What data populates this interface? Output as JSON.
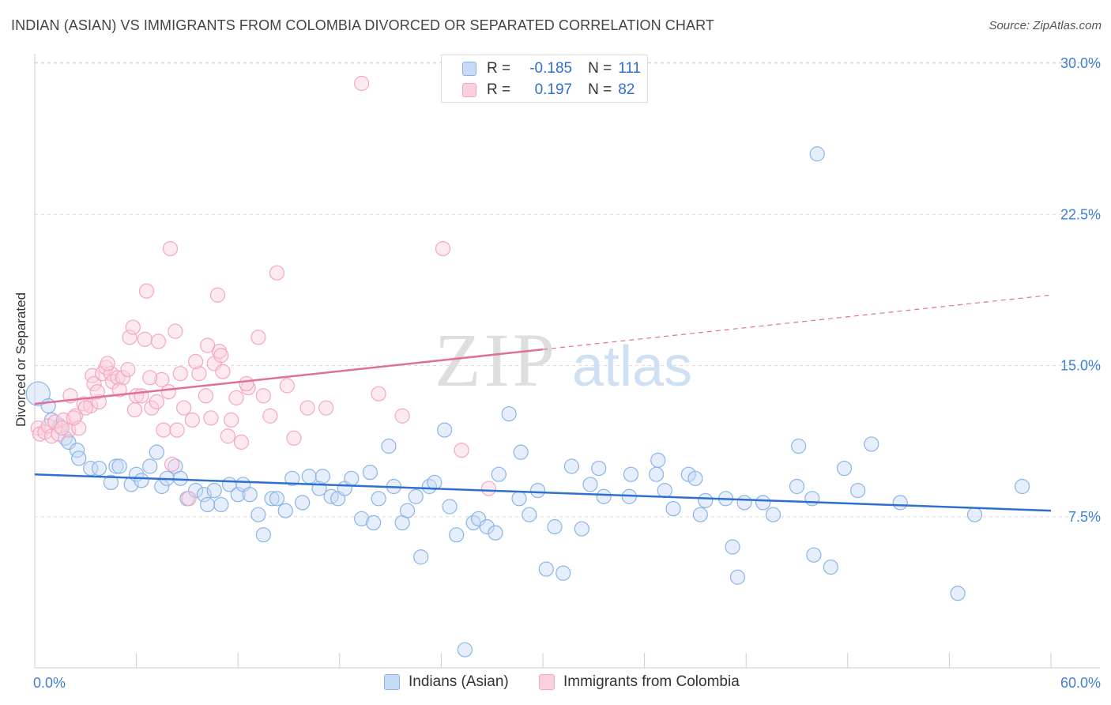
{
  "title": "INDIAN (ASIAN) VS IMMIGRANTS FROM COLOMBIA DIVORCED OR SEPARATED CORRELATION CHART",
  "source": "Source: ZipAtlas.com",
  "watermark": {
    "zip": "ZIP",
    "atlas": "atlas"
  },
  "legend_stats": [
    {
      "r_label": "R =",
      "r_value": "-0.185",
      "n_label": "N =",
      "n_value": "111",
      "color": "#8ab4e8"
    },
    {
      "r_label": "R =",
      "r_value": "0.197",
      "n_label": "N =",
      "n_value": "82",
      "color": "#f4a6c0"
    }
  ],
  "chart_data": {
    "type": "scatter",
    "title": "INDIAN (ASIAN) VS IMMIGRANTS FROM COLOMBIA DIVORCED OR SEPARATED CORRELATION CHART",
    "xlabel": "",
    "ylabel": "Divorced or Separated",
    "xlim": [
      0,
      60
    ],
    "ylim": [
      0,
      32
    ],
    "x_tick_labels": [
      "0.0%",
      "60.0%"
    ],
    "y_ticks": [
      7.5,
      15.0,
      22.5,
      30.0
    ],
    "y_tick_labels": [
      "7.5%",
      "15.0%",
      "22.5%",
      "30.0%"
    ],
    "grid": true,
    "legend_position": "bottom",
    "series": [
      {
        "name": "Indians (Asian)",
        "color": "#8ab4e8",
        "line_color": "#2e6fd0",
        "trend": {
          "x0": 0,
          "y0": 9.6,
          "x1": 60,
          "y1": 7.8
        },
        "points": [
          [
            0.2,
            13.6
          ],
          [
            0.8,
            13.0
          ],
          [
            1.0,
            12.3
          ],
          [
            1.5,
            12.0
          ],
          [
            1.8,
            11.4
          ],
          [
            2.0,
            11.2
          ],
          [
            2.5,
            10.8
          ],
          [
            2.6,
            10.4
          ],
          [
            3.3,
            9.9
          ],
          [
            3.8,
            9.9
          ],
          [
            4.5,
            9.2
          ],
          [
            4.8,
            10.0
          ],
          [
            5.0,
            10.0
          ],
          [
            5.7,
            9.1
          ],
          [
            6.0,
            9.6
          ],
          [
            6.3,
            9.3
          ],
          [
            6.8,
            10.0
          ],
          [
            7.2,
            10.7
          ],
          [
            7.5,
            9.0
          ],
          [
            7.8,
            9.4
          ],
          [
            8.3,
            10.0
          ],
          [
            8.6,
            9.4
          ],
          [
            9.0,
            8.4
          ],
          [
            9.5,
            8.8
          ],
          [
            10.0,
            8.6
          ],
          [
            10.2,
            8.1
          ],
          [
            10.6,
            8.8
          ],
          [
            11.0,
            8.1
          ],
          [
            11.5,
            9.1
          ],
          [
            12.0,
            8.6
          ],
          [
            12.3,
            9.1
          ],
          [
            12.7,
            8.6
          ],
          [
            13.2,
            7.6
          ],
          [
            13.5,
            6.6
          ],
          [
            14.0,
            8.4
          ],
          [
            14.3,
            8.4
          ],
          [
            14.8,
            7.8
          ],
          [
            15.2,
            9.4
          ],
          [
            15.8,
            8.2
          ],
          [
            16.2,
            9.5
          ],
          [
            16.8,
            8.9
          ],
          [
            17.0,
            9.5
          ],
          [
            17.5,
            8.5
          ],
          [
            17.9,
            8.4
          ],
          [
            18.3,
            8.9
          ],
          [
            18.7,
            9.4
          ],
          [
            19.3,
            7.4
          ],
          [
            19.8,
            9.7
          ],
          [
            20.0,
            7.2
          ],
          [
            20.3,
            8.4
          ],
          [
            20.9,
            11.0
          ],
          [
            21.2,
            9.0
          ],
          [
            21.7,
            7.2
          ],
          [
            22.0,
            7.8
          ],
          [
            22.5,
            8.5
          ],
          [
            22.8,
            5.5
          ],
          [
            23.3,
            9.0
          ],
          [
            23.6,
            9.2
          ],
          [
            24.2,
            11.8
          ],
          [
            24.5,
            8.0
          ],
          [
            24.9,
            6.6
          ],
          [
            25.4,
            0.9
          ],
          [
            25.9,
            7.2
          ],
          [
            26.2,
            7.4
          ],
          [
            26.7,
            7.0
          ],
          [
            27.2,
            6.7
          ],
          [
            27.4,
            9.6
          ],
          [
            28.0,
            12.6
          ],
          [
            28.6,
            8.4
          ],
          [
            28.7,
            10.7
          ],
          [
            29.2,
            7.6
          ],
          [
            29.7,
            8.8
          ],
          [
            30.2,
            4.9
          ],
          [
            30.7,
            7.0
          ],
          [
            31.2,
            4.7
          ],
          [
            31.7,
            10.0
          ],
          [
            32.3,
            6.9
          ],
          [
            32.8,
            9.1
          ],
          [
            33.3,
            9.9
          ],
          [
            33.6,
            8.5
          ],
          [
            35.1,
            8.5
          ],
          [
            35.2,
            9.6
          ],
          [
            36.7,
            9.6
          ],
          [
            36.8,
            10.3
          ],
          [
            37.2,
            8.8
          ],
          [
            37.7,
            7.9
          ],
          [
            38.6,
            9.6
          ],
          [
            39.0,
            9.4
          ],
          [
            39.3,
            7.6
          ],
          [
            39.6,
            8.3
          ],
          [
            40.8,
            8.4
          ],
          [
            41.2,
            6.0
          ],
          [
            41.5,
            4.5
          ],
          [
            41.9,
            8.2
          ],
          [
            43.0,
            8.2
          ],
          [
            43.6,
            7.6
          ],
          [
            45.0,
            9.0
          ],
          [
            45.1,
            11.0
          ],
          [
            45.9,
            8.4
          ],
          [
            46.0,
            5.6
          ],
          [
            46.2,
            25.5
          ],
          [
            47.0,
            5.0
          ],
          [
            47.8,
            9.9
          ],
          [
            48.6,
            8.8
          ],
          [
            49.4,
            11.1
          ],
          [
            51.1,
            8.2
          ],
          [
            54.5,
            3.7
          ],
          [
            55.5,
            7.6
          ],
          [
            58.3,
            9.0
          ]
        ]
      },
      {
        "name": "Immigrants from Colombia",
        "color": "#f4a6c0",
        "line_color": "#e0709a",
        "trend": {
          "x0": 0,
          "y0": 13.1,
          "x1": 30,
          "y1": 15.8
        },
        "trend_ext": {
          "x0": 30,
          "y0": 15.8,
          "x1": 60,
          "y1": 18.5
        },
        "points": [
          [
            0.2,
            11.9
          ],
          [
            0.3,
            11.6
          ],
          [
            0.6,
            11.7
          ],
          [
            0.8,
            12.0
          ],
          [
            1.0,
            11.5
          ],
          [
            1.2,
            12.2
          ],
          [
            1.4,
            11.6
          ],
          [
            1.7,
            12.3
          ],
          [
            2.0,
            11.8
          ],
          [
            2.1,
            13.5
          ],
          [
            2.4,
            12.5
          ],
          [
            2.6,
            11.9
          ],
          [
            2.9,
            13.1
          ],
          [
            3.3,
            13.0
          ],
          [
            3.4,
            14.5
          ],
          [
            3.5,
            14.1
          ],
          [
            3.8,
            13.2
          ],
          [
            4.0,
            14.6
          ],
          [
            4.2,
            14.9
          ],
          [
            4.5,
            14.6
          ],
          [
            4.6,
            14.2
          ],
          [
            4.9,
            14.4
          ],
          [
            5.2,
            14.4
          ],
          [
            5.5,
            14.8
          ],
          [
            5.6,
            16.4
          ],
          [
            5.8,
            16.9
          ],
          [
            6.0,
            13.5
          ],
          [
            6.3,
            13.5
          ],
          [
            6.5,
            16.3
          ],
          [
            6.6,
            18.7
          ],
          [
            6.9,
            12.9
          ],
          [
            7.2,
            13.2
          ],
          [
            7.3,
            16.2
          ],
          [
            7.5,
            14.3
          ],
          [
            7.6,
            11.8
          ],
          [
            8.0,
            20.8
          ],
          [
            8.1,
            10.1
          ],
          [
            8.3,
            16.7
          ],
          [
            8.4,
            11.8
          ],
          [
            8.6,
            14.6
          ],
          [
            8.8,
            12.9
          ],
          [
            9.1,
            8.4
          ],
          [
            9.3,
            12.3
          ],
          [
            9.7,
            14.6
          ],
          [
            10.1,
            13.5
          ],
          [
            10.4,
            12.4
          ],
          [
            10.6,
            15.1
          ],
          [
            10.8,
            18.5
          ],
          [
            10.9,
            15.7
          ],
          [
            11.1,
            14.7
          ],
          [
            11.4,
            11.5
          ],
          [
            11.6,
            12.3
          ],
          [
            11.9,
            13.4
          ],
          [
            12.2,
            11.2
          ],
          [
            12.6,
            13.9
          ],
          [
            13.2,
            16.4
          ],
          [
            13.9,
            12.5
          ],
          [
            14.3,
            19.6
          ],
          [
            14.9,
            14.0
          ],
          [
            15.3,
            11.4
          ],
          [
            16.1,
            12.9
          ],
          [
            17.2,
            12.9
          ],
          [
            19.3,
            29.0
          ],
          [
            20.3,
            13.6
          ],
          [
            21.7,
            12.5
          ],
          [
            24.1,
            20.8
          ],
          [
            25.2,
            10.8
          ],
          [
            26.8,
            8.9
          ],
          [
            1.6,
            11.9
          ],
          [
            2.3,
            12.4
          ],
          [
            3.0,
            12.9
          ],
          [
            3.7,
            13.7
          ],
          [
            4.3,
            15.1
          ],
          [
            5.0,
            13.8
          ],
          [
            5.9,
            12.8
          ],
          [
            6.8,
            14.4
          ],
          [
            7.9,
            13.7
          ],
          [
            9.5,
            15.2
          ],
          [
            10.2,
            16.0
          ],
          [
            11.0,
            15.5
          ],
          [
            12.5,
            14.1
          ],
          [
            13.5,
            13.5
          ]
        ]
      }
    ]
  }
}
